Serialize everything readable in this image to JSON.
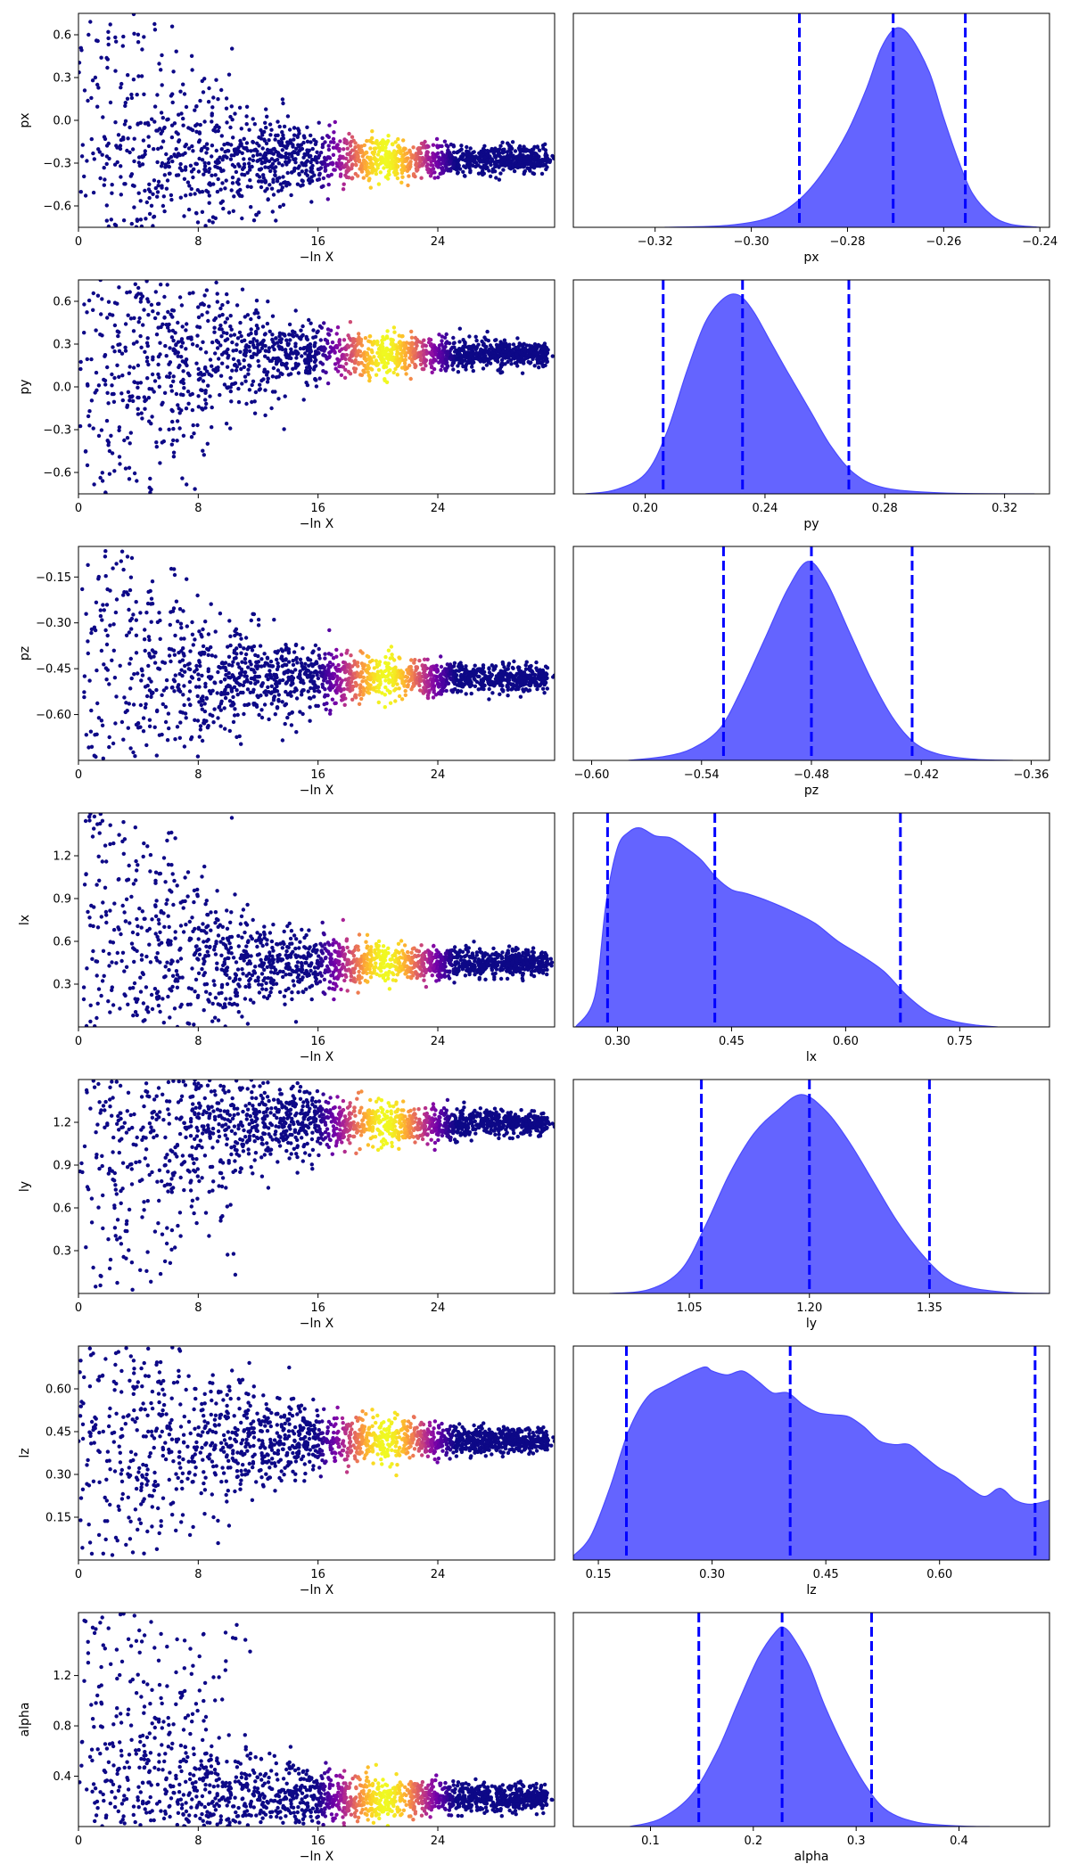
{
  "colors": {
    "kde_fill": "#3030ff",
    "kde_fill_opacity": 0.75,
    "kde_edge": "#4a4aff",
    "quantile_line": "#0000ff",
    "trace_cmap": [
      "#0d0887",
      "#0d0887",
      "#46039f",
      "#7201a8",
      "#9c179e",
      "#bd3786",
      "#d8576b",
      "#ed7953",
      "#fb9f3a",
      "#fdca26",
      "#f0f921"
    ]
  },
  "trace_xlabel": "−ln X",
  "chart_data": [
    {
      "type": "scatter",
      "panel": "trace",
      "param": "px",
      "ylabel": "px",
      "xlabel": "−ln X",
      "xlim": [
        0,
        31.8
      ],
      "ylim": [
        -0.75,
        0.75
      ],
      "xticks": [
        0,
        8,
        16,
        24
      ],
      "xtick_labels": [
        "0",
        "8",
        "16",
        "24"
      ],
      "yticks": [
        0.6,
        0.3,
        0.0,
        -0.3,
        -0.6
      ],
      "ytick_labels": [
        "0.6",
        "0.3",
        "0.0",
        "−0.3",
        "−0.6"
      ],
      "converged_value": -0.27,
      "posterior_peak_x": 20.5
    },
    {
      "type": "area",
      "panel": "posterior",
      "param": "px",
      "xlabel": "px",
      "xlim": [
        -0.337,
        -0.238
      ],
      "xticks": [
        -0.32,
        -0.3,
        -0.28,
        -0.26,
        -0.24
      ],
      "xtick_labels": [
        "−0.32",
        "−0.30",
        "−0.28",
        "−0.26",
        "−0.24"
      ],
      "density": [
        [
          -0.318,
          0.0
        ],
        [
          -0.305,
          0.01
        ],
        [
          -0.296,
          0.05
        ],
        [
          -0.29,
          0.14
        ],
        [
          -0.285,
          0.28
        ],
        [
          -0.28,
          0.48
        ],
        [
          -0.276,
          0.7
        ],
        [
          -0.273,
          0.9
        ],
        [
          -0.27,
          1.0
        ],
        [
          -0.267,
          0.96
        ],
        [
          -0.263,
          0.78
        ],
        [
          -0.26,
          0.55
        ],
        [
          -0.257,
          0.34
        ],
        [
          -0.254,
          0.17
        ],
        [
          -0.25,
          0.06
        ],
        [
          -0.246,
          0.015
        ],
        [
          -0.24,
          0.0
        ]
      ],
      "quantiles": [
        -0.29,
        -0.2705,
        -0.2555
      ]
    },
    {
      "type": "scatter",
      "panel": "trace",
      "param": "py",
      "ylabel": "py",
      "xlabel": "−ln X",
      "xlim": [
        0,
        31.8
      ],
      "ylim": [
        -0.75,
        0.75
      ],
      "xticks": [
        0,
        8,
        16,
        24
      ],
      "xtick_labels": [
        "0",
        "8",
        "16",
        "24"
      ],
      "yticks": [
        0.6,
        0.3,
        0.0,
        -0.3,
        -0.6
      ],
      "ytick_labels": [
        "0.6",
        "0.3",
        "0.0",
        "−0.3",
        "−0.6"
      ],
      "converged_value": 0.232,
      "posterior_peak_x": 20.5
    },
    {
      "type": "area",
      "panel": "posterior",
      "param": "py",
      "xlabel": "py",
      "xlim": [
        0.176,
        0.335
      ],
      "xticks": [
        0.2,
        0.24,
        0.28,
        0.32
      ],
      "xtick_labels": [
        "0.20",
        "0.24",
        "0.28",
        "0.32"
      ],
      "density": [
        [
          0.18,
          0.0
        ],
        [
          0.19,
          0.02
        ],
        [
          0.2,
          0.1
        ],
        [
          0.207,
          0.3
        ],
        [
          0.214,
          0.62
        ],
        [
          0.22,
          0.86
        ],
        [
          0.226,
          0.98
        ],
        [
          0.231,
          1.0
        ],
        [
          0.236,
          0.92
        ],
        [
          0.242,
          0.76
        ],
        [
          0.248,
          0.6
        ],
        [
          0.255,
          0.42
        ],
        [
          0.262,
          0.24
        ],
        [
          0.27,
          0.1
        ],
        [
          0.28,
          0.03
        ],
        [
          0.3,
          0.004
        ],
        [
          0.33,
          0.0
        ]
      ],
      "quantiles": [
        0.206,
        0.2325,
        0.268
      ]
    },
    {
      "type": "scatter",
      "panel": "trace",
      "param": "pz",
      "ylabel": "pz",
      "xlabel": "−ln X",
      "xlim": [
        0,
        31.8
      ],
      "ylim": [
        -0.75,
        -0.05
      ],
      "xticks": [
        0,
        8,
        16,
        24
      ],
      "xtick_labels": [
        "0",
        "8",
        "16",
        "24"
      ],
      "yticks": [
        -0.15,
        -0.3,
        -0.45,
        -0.6
      ],
      "ytick_labels": [
        "−0.15",
        "−0.30",
        "−0.45",
        "−0.60"
      ],
      "converged_value": -0.48,
      "posterior_peak_x": 20.5
    },
    {
      "type": "area",
      "panel": "posterior",
      "param": "pz",
      "xlabel": "pz",
      "xlim": [
        -0.61,
        -0.35
      ],
      "xticks": [
        -0.6,
        -0.54,
        -0.48,
        -0.42,
        -0.36
      ],
      "xtick_labels": [
        "−0.60",
        "−0.54",
        "−0.48",
        "−0.42",
        "−0.36"
      ],
      "density": [
        [
          -0.58,
          0.0
        ],
        [
          -0.56,
          0.02
        ],
        [
          -0.545,
          0.06
        ],
        [
          -0.53,
          0.16
        ],
        [
          -0.518,
          0.36
        ],
        [
          -0.505,
          0.62
        ],
        [
          -0.493,
          0.86
        ],
        [
          -0.482,
          1.0
        ],
        [
          -0.472,
          0.9
        ],
        [
          -0.46,
          0.66
        ],
        [
          -0.448,
          0.42
        ],
        [
          -0.436,
          0.22
        ],
        [
          -0.424,
          0.09
        ],
        [
          -0.41,
          0.03
        ],
        [
          -0.39,
          0.005
        ],
        [
          -0.37,
          0.0
        ]
      ],
      "quantiles": [
        -0.528,
        -0.48,
        -0.425
      ]
    },
    {
      "type": "scatter",
      "panel": "trace",
      "param": "lx",
      "ylabel": "lx",
      "xlabel": "−ln X",
      "xlim": [
        0,
        31.8
      ],
      "ylim": [
        0.0,
        1.5
      ],
      "xticks": [
        0,
        8,
        16,
        24
      ],
      "xtick_labels": [
        "0",
        "8",
        "16",
        "24"
      ],
      "yticks": [
        1.2,
        0.9,
        0.6,
        0.3
      ],
      "ytick_labels": [
        "1.2",
        "0.9",
        "0.6",
        "0.3"
      ],
      "converged_value": 0.45,
      "posterior_peak_x": 20.5
    },
    {
      "type": "area",
      "panel": "posterior",
      "param": "lx",
      "xlabel": "lx",
      "xlim": [
        0.242,
        0.868
      ],
      "xticks": [
        0.3,
        0.45,
        0.6,
        0.75
      ],
      "xtick_labels": [
        "0.30",
        "0.45",
        "0.60",
        "0.75"
      ],
      "density": [
        [
          0.245,
          0.0
        ],
        [
          0.27,
          0.15
        ],
        [
          0.285,
          0.62
        ],
        [
          0.3,
          0.9
        ],
        [
          0.315,
          0.98
        ],
        [
          0.33,
          1.0
        ],
        [
          0.35,
          0.96
        ],
        [
          0.37,
          0.95
        ],
        [
          0.39,
          0.9
        ],
        [
          0.41,
          0.84
        ],
        [
          0.43,
          0.75
        ],
        [
          0.45,
          0.69
        ],
        [
          0.47,
          0.67
        ],
        [
          0.5,
          0.63
        ],
        [
          0.53,
          0.58
        ],
        [
          0.56,
          0.52
        ],
        [
          0.59,
          0.43
        ],
        [
          0.62,
          0.36
        ],
        [
          0.65,
          0.28
        ],
        [
          0.68,
          0.16
        ],
        [
          0.71,
          0.07
        ],
        [
          0.74,
          0.03
        ],
        [
          0.77,
          0.01
        ],
        [
          0.8,
          0.0
        ]
      ],
      "quantiles": [
        0.287,
        0.428,
        0.672
      ]
    },
    {
      "type": "scatter",
      "panel": "trace",
      "param": "ly",
      "ylabel": "ly",
      "xlabel": "−ln X",
      "xlim": [
        0,
        31.8
      ],
      "ylim": [
        0.0,
        1.5
      ],
      "xticks": [
        0,
        8,
        16,
        24
      ],
      "xtick_labels": [
        "0",
        "8",
        "16",
        "24"
      ],
      "yticks": [
        1.2,
        0.9,
        0.6,
        0.3
      ],
      "ytick_labels": [
        "1.2",
        "0.9",
        "0.6",
        "0.3"
      ],
      "converged_value": 1.19,
      "posterior_peak_x": 20.5
    },
    {
      "type": "area",
      "panel": "posterior",
      "param": "ly",
      "xlabel": "ly",
      "xlim": [
        0.905,
        1.5
      ],
      "xticks": [
        1.05,
        1.2,
        1.35
      ],
      "xtick_labels": [
        "1.05",
        "1.20",
        "1.35"
      ],
      "density": [
        [
          0.95,
          0.0
        ],
        [
          1.0,
          0.02
        ],
        [
          1.04,
          0.12
        ],
        [
          1.07,
          0.34
        ],
        [
          1.1,
          0.6
        ],
        [
          1.13,
          0.8
        ],
        [
          1.16,
          0.92
        ],
        [
          1.19,
          1.0
        ],
        [
          1.22,
          0.92
        ],
        [
          1.25,
          0.76
        ],
        [
          1.28,
          0.56
        ],
        [
          1.31,
          0.36
        ],
        [
          1.34,
          0.2
        ],
        [
          1.37,
          0.08
        ],
        [
          1.4,
          0.03
        ],
        [
          1.45,
          0.005
        ],
        [
          1.5,
          0.0
        ]
      ],
      "quantiles": [
        1.065,
        1.2,
        1.35
      ]
    },
    {
      "type": "scatter",
      "panel": "trace",
      "param": "lz",
      "ylabel": "lz",
      "xlabel": "−ln X",
      "xlim": [
        0,
        31.8
      ],
      "ylim": [
        0.0,
        0.75
      ],
      "xticks": [
        0,
        8,
        16,
        24
      ],
      "xtick_labels": [
        "0",
        "8",
        "16",
        "24"
      ],
      "yticks": [
        0.6,
        0.45,
        0.3,
        0.15
      ],
      "ytick_labels": [
        "0.60",
        "0.45",
        "0.30",
        "0.15"
      ],
      "converged_value": 0.42,
      "posterior_peak_x": 20.5
    },
    {
      "type": "area",
      "panel": "posterior",
      "param": "lz",
      "xlabel": "lz",
      "xlim": [
        0.117,
        0.745
      ],
      "xticks": [
        0.15,
        0.3,
        0.45,
        0.6
      ],
      "xtick_labels": [
        "0.15",
        "0.30",
        "0.45",
        "0.60"
      ],
      "density": [
        [
          0.117,
          0.02
        ],
        [
          0.14,
          0.12
        ],
        [
          0.165,
          0.36
        ],
        [
          0.19,
          0.65
        ],
        [
          0.215,
          0.82
        ],
        [
          0.24,
          0.88
        ],
        [
          0.265,
          0.93
        ],
        [
          0.29,
          0.97
        ],
        [
          0.3,
          0.95
        ],
        [
          0.32,
          0.93
        ],
        [
          0.34,
          0.95
        ],
        [
          0.36,
          0.9
        ],
        [
          0.38,
          0.84
        ],
        [
          0.4,
          0.84
        ],
        [
          0.42,
          0.78
        ],
        [
          0.44,
          0.74
        ],
        [
          0.46,
          0.73
        ],
        [
          0.48,
          0.72
        ],
        [
          0.5,
          0.67
        ],
        [
          0.52,
          0.6
        ],
        [
          0.54,
          0.58
        ],
        [
          0.56,
          0.58
        ],
        [
          0.58,
          0.52
        ],
        [
          0.6,
          0.46
        ],
        [
          0.62,
          0.42
        ],
        [
          0.64,
          0.36
        ],
        [
          0.66,
          0.32
        ],
        [
          0.68,
          0.36
        ],
        [
          0.7,
          0.3
        ],
        [
          0.72,
          0.28
        ],
        [
          0.745,
          0.3
        ]
      ],
      "quantiles": [
        0.187,
        0.403,
        0.726
      ]
    },
    {
      "type": "scatter",
      "panel": "trace",
      "param": "alpha",
      "ylabel": "alpha",
      "xlabel": "−ln X",
      "xlim": [
        0,
        31.8
      ],
      "ylim": [
        0.0,
        1.7
      ],
      "xticks": [
        0,
        8,
        16,
        24
      ],
      "xtick_labels": [
        "0",
        "8",
        "16",
        "24"
      ],
      "yticks": [
        1.2,
        0.8,
        0.4
      ],
      "ytick_labels": [
        "1.2",
        "0.8",
        "0.4"
      ],
      "converged_value": 0.23,
      "posterior_peak_x": 20.5
    },
    {
      "type": "area",
      "panel": "posterior",
      "param": "alpha",
      "xlabel": "alpha",
      "xlim": [
        0.025,
        0.488
      ],
      "xticks": [
        0.1,
        0.2,
        0.3,
        0.4
      ],
      "xtick_labels": [
        "0.1",
        "0.2",
        "0.3",
        "0.4"
      ],
      "density": [
        [
          0.08,
          0.0
        ],
        [
          0.11,
          0.04
        ],
        [
          0.14,
          0.16
        ],
        [
          0.165,
          0.38
        ],
        [
          0.185,
          0.62
        ],
        [
          0.205,
          0.85
        ],
        [
          0.222,
          0.98
        ],
        [
          0.23,
          1.0
        ],
        [
          0.24,
          0.94
        ],
        [
          0.255,
          0.8
        ],
        [
          0.27,
          0.6
        ],
        [
          0.29,
          0.38
        ],
        [
          0.31,
          0.2
        ],
        [
          0.33,
          0.08
        ],
        [
          0.36,
          0.02
        ],
        [
          0.4,
          0.003
        ],
        [
          0.43,
          0.0
        ]
      ],
      "quantiles": [
        0.147,
        0.228,
        0.315
      ]
    }
  ]
}
